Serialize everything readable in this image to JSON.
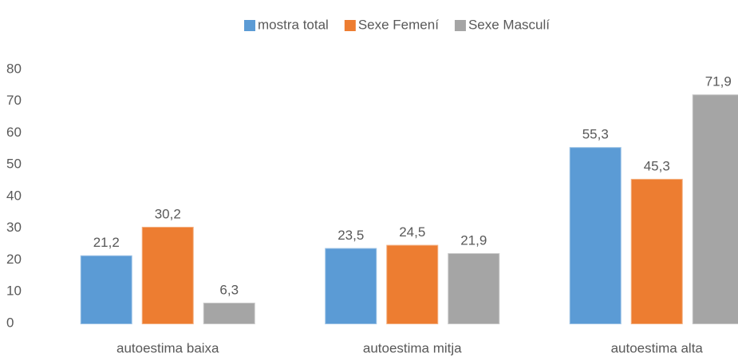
{
  "chart_data": {
    "type": "bar",
    "categories": [
      "autoestima baixa",
      "autoestima mitja",
      "autoestima alta"
    ],
    "series": [
      {
        "name": "mostra total",
        "color": "#5b9bd5",
        "values": [
          21.2,
          23.5,
          55.3
        ],
        "value_labels": [
          "21,2",
          "23,5",
          "55,3"
        ]
      },
      {
        "name": "Sexe Femení",
        "color": "#ed7d31",
        "values": [
          30.2,
          24.5,
          45.3
        ],
        "value_labels": [
          "30,2",
          "24,5",
          "45,3"
        ]
      },
      {
        "name": "Sexe Masculí",
        "color": "#a5a5a5",
        "values": [
          6.3,
          21.9,
          71.9
        ],
        "value_labels": [
          "6,3",
          "21,9",
          "71,9"
        ]
      }
    ],
    "ylim": [
      0,
      80
    ],
    "yticks": [
      0,
      10,
      20,
      30,
      40,
      50,
      60,
      70,
      80
    ],
    "grid": false,
    "legend": "top"
  }
}
